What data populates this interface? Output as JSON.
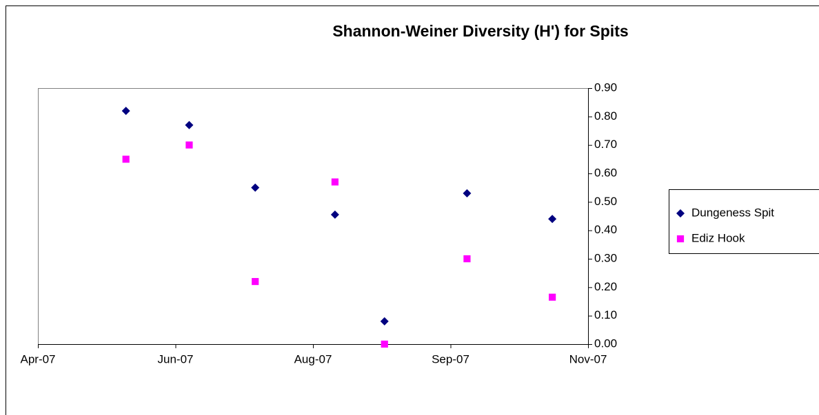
{
  "chart_data": {
    "type": "scatter",
    "title": "Shannon-Weiner Diversity (H') for Spits",
    "xlim": [
      39200,
      39400
    ],
    "xticks": [
      {
        "value": 39200,
        "label": "Apr-07"
      },
      {
        "value": 39250,
        "label": "Jun-07"
      },
      {
        "value": 39300,
        "label": "Aug-07"
      },
      {
        "value": 39350,
        "label": "Sep-07"
      },
      {
        "value": 39400,
        "label": "Nov-07"
      }
    ],
    "ylim": [
      0,
      0.9
    ],
    "yticks": [
      {
        "value": 0,
        "label": "0.00"
      },
      {
        "value": 0.1,
        "label": "0.10"
      },
      {
        "value": 0.2,
        "label": "0.20"
      },
      {
        "value": 0.3,
        "label": "0.30"
      },
      {
        "value": 0.4,
        "label": "0.40"
      },
      {
        "value": 0.5,
        "label": "0.50"
      },
      {
        "value": 0.6,
        "label": "0.60"
      },
      {
        "value": 0.7,
        "label": "0.70"
      },
      {
        "value": 0.8,
        "label": "0.80"
      },
      {
        "value": 0.9,
        "label": "0.90"
      }
    ],
    "yaxis_side": "right",
    "legend": "right",
    "series": [
      {
        "name": "Dungeness Spit",
        "color": "#000080",
        "marker": "diamond",
        "x": [
          39232,
          39255,
          39279,
          39308,
          39326,
          39356,
          39387
        ],
        "values": [
          0.82,
          0.77,
          0.55,
          0.455,
          0.08,
          0.53,
          0.44
        ]
      },
      {
        "name": "Ediz Hook",
        "color": "#ff00ff",
        "marker": "square",
        "x": [
          39232,
          39255,
          39279,
          39308,
          39326,
          39356,
          39387
        ],
        "values": [
          0.65,
          0.7,
          0.22,
          0.57,
          0.0,
          0.3,
          0.165
        ]
      }
    ]
  }
}
